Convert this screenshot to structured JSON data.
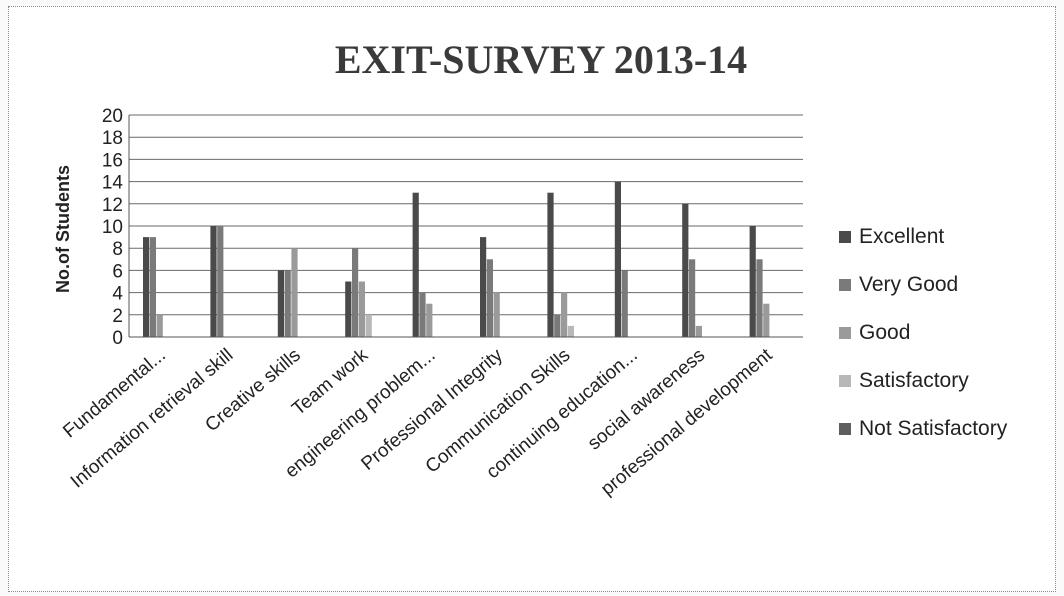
{
  "chart_data": {
    "type": "bar",
    "title": "EXIT-SURVEY 2013-14",
    "xlabel": "",
    "ylabel": "No.of Students",
    "ylim": [
      0,
      20
    ],
    "yticks": [
      "0",
      "2",
      "4",
      "6",
      "8",
      "10",
      "12",
      "14",
      "16",
      "18",
      "20"
    ],
    "grid": true,
    "legend_position": "right",
    "categories": [
      "Fundamental...",
      "Information retrieval skill",
      "Creative skills",
      "Team work",
      "engineering problem...",
      "Professional Integrity",
      "Communication Skills",
      "continuing education...",
      "social awareness",
      "professional development"
    ],
    "series": [
      {
        "name": "Excellent",
        "color": "#4a4a4a",
        "values": [
          9,
          10,
          6,
          5,
          13,
          9,
          13,
          14,
          12,
          10
        ]
      },
      {
        "name": "Very Good",
        "color": "#7a7a7a",
        "values": [
          9,
          10,
          6,
          8,
          4,
          7,
          2,
          6,
          7,
          7
        ]
      },
      {
        "name": "Good",
        "color": "#9a9a9a",
        "values": [
          2,
          0,
          8,
          5,
          3,
          4,
          4,
          0,
          1,
          3
        ]
      },
      {
        "name": "Satisfactory",
        "color": "#b8b8b8",
        "values": [
          0,
          0,
          0,
          2,
          0,
          0,
          1,
          0,
          0,
          0
        ]
      },
      {
        "name": "Not Satisfactory",
        "color": "#5e5e5e",
        "values": [
          0,
          0,
          0,
          0,
          0,
          0,
          0,
          0,
          0,
          0
        ]
      }
    ]
  }
}
